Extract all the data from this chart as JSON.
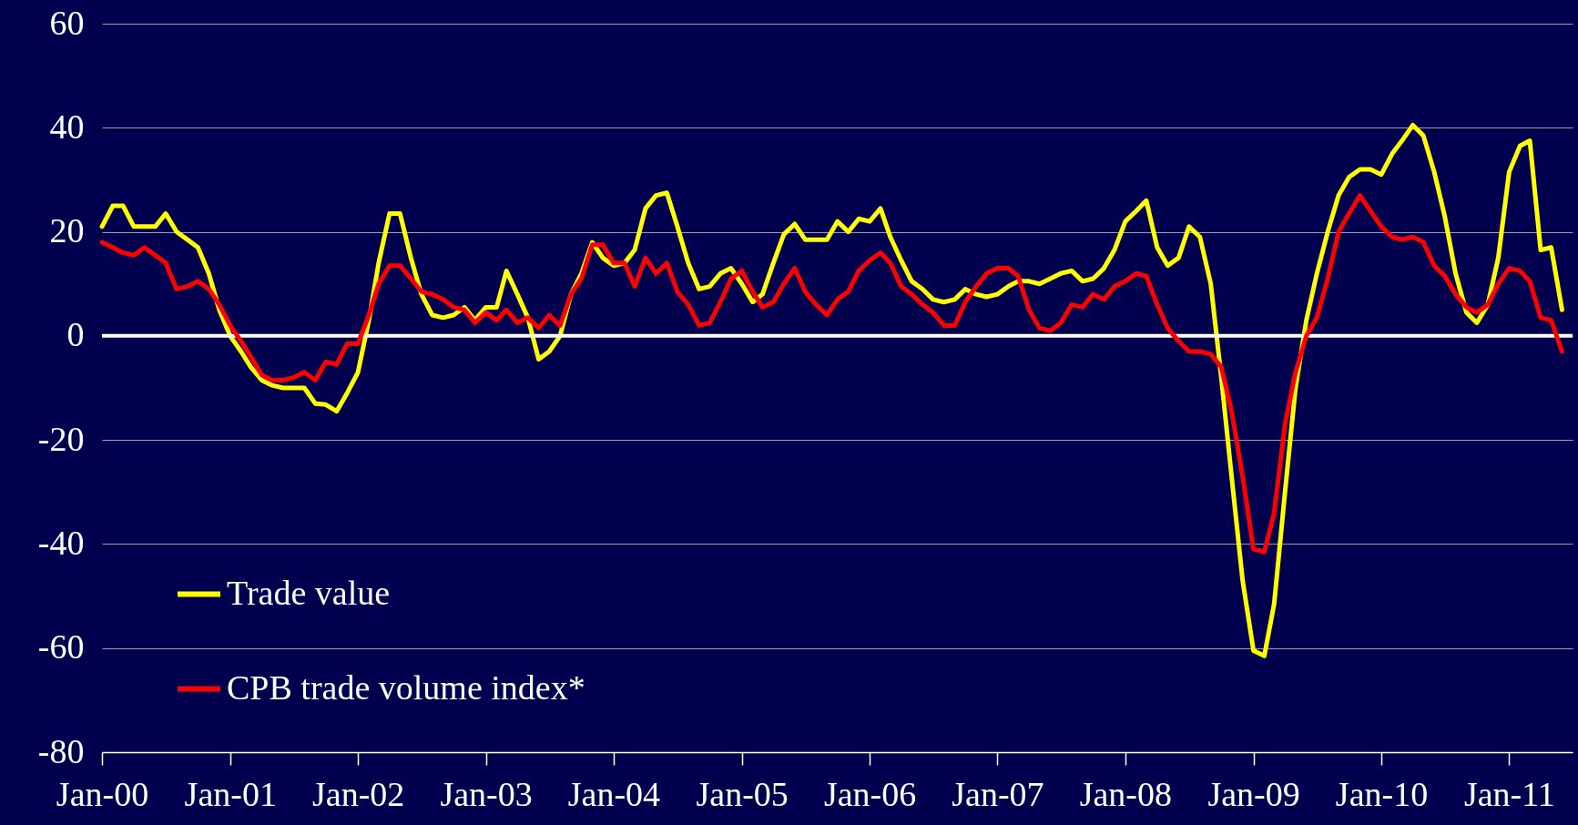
{
  "chart_data": {
    "type": "line",
    "x": [
      "2000-01",
      "2000-02",
      "2000-03",
      "2000-04",
      "2000-05",
      "2000-06",
      "2000-07",
      "2000-08",
      "2000-09",
      "2000-10",
      "2000-11",
      "2000-12",
      "2001-01",
      "2001-02",
      "2001-03",
      "2001-04",
      "2001-05",
      "2001-06",
      "2001-07",
      "2001-08",
      "2001-09",
      "2001-10",
      "2001-11",
      "2001-12",
      "2002-01",
      "2002-02",
      "2002-03",
      "2002-04",
      "2002-05",
      "2002-06",
      "2002-07",
      "2002-08",
      "2002-09",
      "2002-10",
      "2002-11",
      "2002-12",
      "2003-01",
      "2003-02",
      "2003-03",
      "2003-04",
      "2003-05",
      "2003-06",
      "2003-07",
      "2003-08",
      "2003-09",
      "2003-10",
      "2003-11",
      "2003-12",
      "2004-01",
      "2004-02",
      "2004-03",
      "2004-04",
      "2004-05",
      "2004-06",
      "2004-07",
      "2004-08",
      "2004-09",
      "2004-10",
      "2004-11",
      "2004-12",
      "2005-01",
      "2005-02",
      "2005-03",
      "2005-04",
      "2005-05",
      "2005-06",
      "2005-07",
      "2005-08",
      "2005-09",
      "2005-10",
      "2005-11",
      "2005-12",
      "2006-01",
      "2006-02",
      "2006-03",
      "2006-04",
      "2006-05",
      "2006-06",
      "2006-07",
      "2006-08",
      "2006-09",
      "2006-10",
      "2006-11",
      "2006-12",
      "2007-01",
      "2007-02",
      "2007-03",
      "2007-04",
      "2007-05",
      "2007-06",
      "2007-07",
      "2007-08",
      "2007-09",
      "2007-10",
      "2007-11",
      "2007-12",
      "2008-01",
      "2008-02",
      "2008-03",
      "2008-04",
      "2008-05",
      "2008-06",
      "2008-07",
      "2008-08",
      "2008-09",
      "2008-10",
      "2008-11",
      "2008-12",
      "2009-01",
      "2009-02",
      "2009-03",
      "2009-04",
      "2009-05",
      "2009-06",
      "2009-07",
      "2009-08",
      "2009-09",
      "2009-10",
      "2009-11",
      "2009-12",
      "2010-01",
      "2010-02",
      "2010-03",
      "2010-04",
      "2010-05",
      "2010-06",
      "2010-07",
      "2010-08",
      "2010-09",
      "2010-10",
      "2010-11",
      "2010-12",
      "2011-01",
      "2011-02",
      "2011-03",
      "2011-04",
      "2011-05",
      "2011-06"
    ],
    "series": [
      {
        "name": "Trade value",
        "color": "#ffff00",
        "values": [
          21,
          25,
          25,
          21,
          21,
          21,
          23.5,
          20,
          18.5,
          17,
          12,
          5,
          0,
          -3,
          -6,
          -8.5,
          -9.5,
          -10,
          -10,
          -10,
          -13,
          -13.2,
          -14.5,
          -11,
          -7,
          3,
          14,
          23.5,
          23.5,
          15,
          8,
          4,
          3.5,
          4,
          5.5,
          3,
          5.5,
          5.5,
          12.5,
          8,
          3.5,
          -4.5,
          -3,
          0,
          8,
          12,
          18,
          15,
          13.5,
          14,
          16.5,
          24.5,
          27,
          27.5,
          21,
          14,
          9,
          9.5,
          12,
          13,
          10,
          6.5,
          8,
          14,
          19.5,
          21.5,
          18.5,
          18.5,
          18.5,
          22,
          20,
          22.5,
          22,
          24.5,
          19,
          14.5,
          10.5,
          9,
          7,
          6.5,
          7,
          9,
          8,
          7.5,
          8,
          9.5,
          10.5,
          10.5,
          10,
          11,
          12,
          12.5,
          10.5,
          11,
          13,
          16.5,
          22,
          24,
          26,
          17,
          13.5,
          15,
          21,
          19,
          10,
          -8,
          -28,
          -47,
          -60.5,
          -61.5,
          -51.5,
          -30,
          -10,
          3,
          12,
          20,
          27,
          30.5,
          32,
          32,
          31,
          35,
          37.5,
          40.5,
          38.5,
          31.5,
          23,
          12,
          4.5,
          2.5,
          6,
          15,
          31.5,
          36.5,
          37.5,
          16.5,
          17,
          5
        ]
      },
      {
        "name": "CPB trade volume index*",
        "color": "#ff0000",
        "values": [
          18,
          17,
          16,
          15.5,
          17,
          15.5,
          14,
          9,
          9.5,
          10.5,
          9,
          6,
          2,
          -1,
          -4,
          -7.5,
          -8.5,
          -8.5,
          -8,
          -7,
          -8.5,
          -5,
          -5.5,
          -1.5,
          -1.5,
          4,
          10,
          13.5,
          13.5,
          11,
          8.5,
          8,
          7,
          5.5,
          5,
          2.5,
          4.5,
          3,
          5,
          2.5,
          3.5,
          1.5,
          4,
          2,
          8,
          11,
          17.5,
          17.5,
          14,
          14,
          9.5,
          15,
          12,
          14,
          8.5,
          6,
          2,
          2.5,
          6.5,
          11,
          12.5,
          8.5,
          5.5,
          6.5,
          10,
          13,
          8.5,
          6,
          4,
          7,
          8.5,
          12.5,
          14.5,
          16,
          14,
          9.5,
          8,
          6,
          4.5,
          2,
          2,
          6.5,
          9.5,
          12,
          13,
          13,
          11.5,
          5,
          1.5,
          1,
          2.5,
          6,
          5.5,
          8,
          7,
          9.5,
          10.5,
          12,
          11.5,
          6,
          1.5,
          -1,
          -3,
          -3,
          -3.5,
          -6,
          -15,
          -27,
          -41,
          -41.5,
          -34,
          -17,
          -7,
          0,
          3.5,
          11,
          20,
          23.5,
          27,
          24,
          21,
          19,
          18.5,
          19,
          18,
          13.5,
          11.5,
          8,
          5.5,
          4.5,
          6,
          10,
          13,
          12.5,
          10.5,
          3.5,
          3,
          -3
        ]
      }
    ],
    "xlim": [
      "2000-01",
      "2011-07"
    ],
    "xticks": [
      {
        "value": "2000-01",
        "label": "Jan-00"
      },
      {
        "value": "2001-01",
        "label": "Jan-01"
      },
      {
        "value": "2002-01",
        "label": "Jan-02"
      },
      {
        "value": "2003-01",
        "label": "Jan-03"
      },
      {
        "value": "2004-01",
        "label": "Jan-04"
      },
      {
        "value": "2005-01",
        "label": "Jan-05"
      },
      {
        "value": "2006-01",
        "label": "Jan-06"
      },
      {
        "value": "2007-01",
        "label": "Jan-07"
      },
      {
        "value": "2008-01",
        "label": "Jan-08"
      },
      {
        "value": "2009-01",
        "label": "Jan-09"
      },
      {
        "value": "2010-01",
        "label": "Jan-10"
      },
      {
        "value": "2011-01",
        "label": "Jan-11"
      }
    ],
    "ylim": [
      -80,
      60
    ],
    "yticks": [
      -80,
      -60,
      -40,
      -20,
      0,
      20,
      40,
      60
    ],
    "ref_lines": [
      {
        "axis": "y",
        "value": 0,
        "color": "#ffffff"
      }
    ],
    "grid": "y",
    "legend": "bottom left",
    "line_style": "solid"
  }
}
